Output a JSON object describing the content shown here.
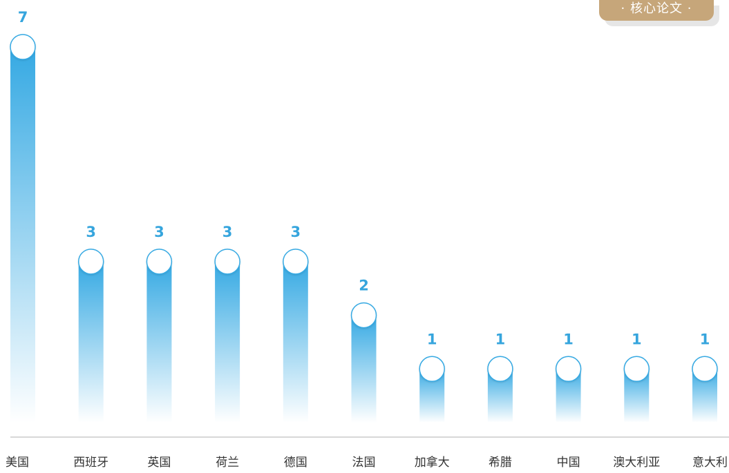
{
  "badge": {
    "label": "· 核心论文 ·"
  },
  "colors": {
    "bar_top": "#35a9e3",
    "bar_bottom": "#ffffff",
    "value_label": "#36a5dd",
    "axis_line": "#cccccc",
    "badge_bg": "#c6a67a"
  },
  "chart_data": {
    "type": "bar",
    "categories": [
      "美国",
      "西班牙",
      "英国",
      "荷兰",
      "德国",
      "法国",
      "加拿大",
      "希腊",
      "中国",
      "澳大利亚",
      "意大利"
    ],
    "values": [
      7,
      3,
      3,
      3,
      3,
      2,
      1,
      1,
      1,
      1,
      1
    ],
    "title": "",
    "xlabel": "",
    "ylabel": "",
    "ylim": [
      0,
      7
    ],
    "grid": false,
    "legend": "none",
    "data_labels": true
  }
}
